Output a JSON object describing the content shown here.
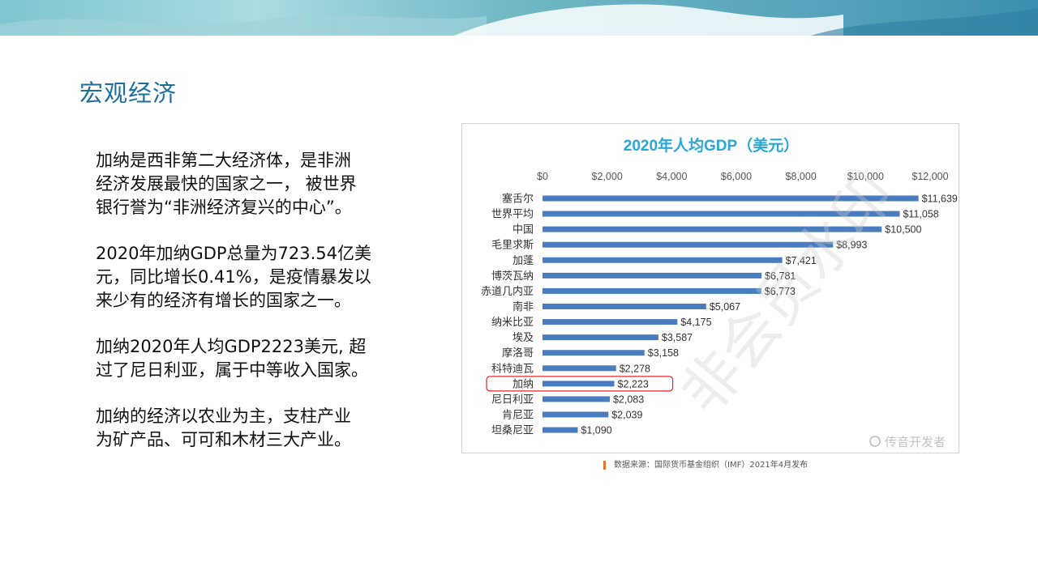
{
  "slide": {
    "title": "宏观经济",
    "paragraphs": [
      "加纳是西非第二大经济体，是非洲\n经济发展最快的国家之一， 被世界\n银行誉为“非洲经济复兴的中心”。",
      "2020年加纳GDP总量为723.54亿美\n元，同比增长0.41%，是疫情暴发以\n来少有的经济有增长的国家之一。",
      "加纳2020年人均GDP2223美元, 超\n过了尼日利亚，属于中等收入国家。",
      "加纳的经济以农业为主，支柱产业\n为矿产品、可可和木材三大产业。"
    ]
  },
  "chart_data": {
    "type": "bar",
    "orientation": "horizontal",
    "title": "2020年人均GDP（美元）",
    "categories": [
      "塞舌尔",
      "世界平均",
      "中国",
      "毛里求斯",
      "加蓬",
      "博茨瓦纳",
      "赤道几内亚",
      "南非",
      "纳米比亚",
      "埃及",
      "摩洛哥",
      "科特迪瓦",
      "加纳",
      "尼日利亚",
      "肯尼亚",
      "坦桑尼亚"
    ],
    "values": [
      11639,
      11058,
      10500,
      8993,
      7421,
      6781,
      6773,
      5067,
      4175,
      3587,
      3158,
      2278,
      2223,
      2083,
      2039,
      1090
    ],
    "value_labels": [
      "$11,639",
      "$11,058",
      "$10,500",
      "$8,993",
      "$7,421",
      "$6,781",
      "$6,773",
      "$5,067",
      "$4,175",
      "$3,587",
      "$3,158",
      "$2,278",
      "$2,223",
      "$2,083",
      "$2,039",
      "$1,090"
    ],
    "xticks": [
      0,
      2000,
      4000,
      6000,
      8000,
      10000,
      12000
    ],
    "xtick_labels": [
      "$0",
      "$2,000",
      "$4,000",
      "$6,000",
      "$8,000",
      "$10,000",
      "$12,000"
    ],
    "xlim": [
      0,
      12000
    ],
    "axis_position": "top",
    "grid": false,
    "highlighted_category": "加纳",
    "colors": {
      "bar": "#4a7dc0",
      "title": "#2aa7d8",
      "highlight_box": "#e0242b"
    },
    "watermark": "非会员水印",
    "social_watermark": "传音开发者",
    "source": "数据来源：国际货币基金组织（IMF）2021年4月发布"
  },
  "colors": {
    "title": "#1f6e9c",
    "source_mark": "#e8742a"
  }
}
